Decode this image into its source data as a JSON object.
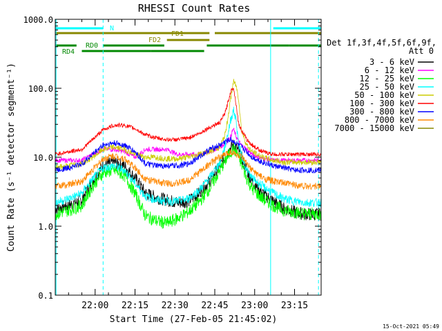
{
  "chart_data": {
    "type": "line",
    "title": "RHESSI Count Rates",
    "xlabel": "Start Time (27-Feb-05 21:45:02)",
    "ylabel": "Count Rate (s⁻¹ detector segment⁻¹)",
    "yscale": "log",
    "ylim": [
      0.1,
      1000
    ],
    "ytick_labels": [
      "0.1",
      "1.0",
      "10.0",
      "100.0",
      "1000.0"
    ],
    "ytick_values": [
      0.1,
      1,
      10,
      100,
      1000
    ],
    "xlim_minutes": [
      0,
      100
    ],
    "xtick_labels": [
      "22:00",
      "22:15",
      "22:30",
      "22:45",
      "23:00",
      "23:15"
    ],
    "xtick_minutes": [
      15,
      30,
      45,
      60,
      75,
      90
    ],
    "legend_header": [
      "Det 1f,3f,4f,5f,6f,9f,",
      "Att 0"
    ],
    "x_minutes": [
      0,
      5,
      10,
      14,
      18,
      22,
      26,
      30,
      34,
      38,
      42,
      46,
      50,
      54,
      58,
      62,
      64,
      66,
      67,
      68,
      69,
      70,
      72,
      74,
      78,
      82,
      86,
      90,
      94,
      98,
      100
    ],
    "series": [
      {
        "name": "3 - 6 keV",
        "color": "#000000",
        "values": [
          1.8,
          2.0,
          2.4,
          4.5,
          7.5,
          8.5,
          7.5,
          5.0,
          3.0,
          2.6,
          2.4,
          2.2,
          2.3,
          3.0,
          4.5,
          7.5,
          10,
          14,
          15,
          14,
          12,
          10,
          6.5,
          4.5,
          3.0,
          2.3,
          1.8,
          1.6,
          1.5,
          1.5,
          1.5
        ]
      },
      {
        "name": "6 - 12 keV",
        "color": "#ff00ff",
        "values": [
          9.0,
          9.0,
          9.0,
          11,
          13,
          13,
          12,
          10,
          13,
          13,
          13,
          11,
          11,
          11,
          12,
          14,
          16,
          20,
          26,
          20,
          17,
          15,
          13,
          11,
          9.5,
          9.0,
          9.0,
          9.0,
          9.0,
          9.0,
          9.0
        ]
      },
      {
        "name": "12 - 25 keV",
        "color": "#00ff00",
        "values": [
          1.5,
          1.7,
          2.0,
          3.8,
          6.0,
          6.5,
          5.5,
          3.0,
          1.4,
          1.2,
          1.1,
          1.3,
          1.6,
          2.2,
          3.5,
          6.5,
          9.0,
          12,
          13,
          12,
          10,
          8.0,
          5.0,
          3.5,
          2.5,
          2.0,
          1.7,
          1.6,
          1.5,
          1.5,
          1.5
        ]
      },
      {
        "name": "25 - 50 keV",
        "color": "#00ffff",
        "values": [
          2.2,
          2.5,
          3.0,
          4.8,
          7.0,
          7.5,
          6.5,
          4.2,
          2.7,
          2.4,
          2.3,
          2.3,
          2.5,
          3.3,
          5.0,
          8.5,
          15,
          35,
          48,
          35,
          15,
          11,
          6.5,
          5.0,
          3.8,
          3.0,
          2.5,
          2.3,
          2.2,
          2.2,
          2.2
        ]
      },
      {
        "name": "50 - 100 keV",
        "color": "#cccc00",
        "values": [
          7.0,
          7.5,
          8.0,
          10,
          13,
          14,
          13,
          11,
          10,
          10,
          9.5,
          9.5,
          10,
          11,
          12,
          14,
          22,
          70,
          125,
          110,
          70,
          25,
          15,
          12,
          10,
          9.0,
          8.5,
          8.5,
          8.5,
          8.5,
          8.5
        ]
      },
      {
        "name": "100 - 300 keV",
        "color": "#ff0000",
        "values": [
          11,
          12,
          13,
          18,
          25,
          29,
          29,
          26,
          21,
          19,
          18,
          18,
          19,
          22,
          27,
          32,
          45,
          90,
          105,
          60,
          30,
          25,
          18,
          15,
          12,
          11,
          11,
          11,
          11,
          11,
          11
        ]
      },
      {
        "name": "300 - 800 keV",
        "color": "#0000ff",
        "values": [
          6.5,
          7.0,
          8.0,
          11,
          15,
          16,
          15,
          12,
          8.0,
          7.5,
          7.5,
          7.5,
          8.0,
          10,
          13,
          15,
          17,
          18,
          17,
          16,
          15,
          14,
          12,
          10,
          8.5,
          7.5,
          7.0,
          6.5,
          6.5,
          6.5,
          6.5
        ]
      },
      {
        "name": "800 - 7000 keV",
        "color": "#ff8800",
        "values": [
          3.8,
          4.0,
          4.5,
          6.5,
          9.5,
          10.5,
          9.5,
          7.0,
          4.8,
          4.4,
          4.2,
          4.2,
          4.6,
          6.0,
          8.0,
          10,
          11,
          12,
          11.5,
          11,
          10.5,
          10,
          8.0,
          6.5,
          5.0,
          4.5,
          4.2,
          4.0,
          3.8,
          3.8,
          3.8
        ]
      },
      {
        "name": "7000 - 15000 keV",
        "color": "#888800",
        "values": []
      }
    ],
    "bars": [
      {
        "label": "N",
        "color": "#00ffff",
        "segments": [
          [
            0,
            18
          ],
          [
            82,
            100
          ]
        ]
      },
      {
        "label": "FD1",
        "color": "#888800",
        "segments": [
          [
            0,
            58
          ],
          [
            60,
            100
          ]
        ]
      },
      {
        "label": "FD2",
        "color": "#888800",
        "segments": [
          [
            42,
            58
          ]
        ]
      },
      {
        "label": "RD0",
        "color": "#008800",
        "segments": [
          [
            0,
            8
          ],
          [
            18,
            41
          ],
          [
            57,
            88
          ],
          [
            88,
            100
          ]
        ]
      },
      {
        "label": "RD4",
        "color": "#008800",
        "segments": [
          [
            10,
            36
          ],
          [
            36,
            56
          ]
        ]
      }
    ],
    "vlines_solid_minutes": [
      0.3,
      81
    ],
    "vlines_dashed_minutes": [
      18,
      99
    ],
    "footer": "15-Oct-2021 05:49"
  }
}
